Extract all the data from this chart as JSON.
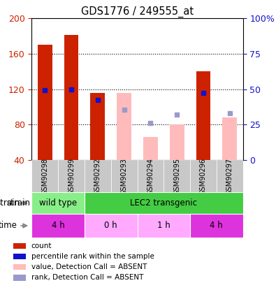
{
  "title": "GDS1776 / 249555_at",
  "samples": [
    "GSM90298",
    "GSM90299",
    "GSM90292",
    "GSM90293",
    "GSM90294",
    "GSM90295",
    "GSM90296",
    "GSM90297"
  ],
  "count_values": [
    170,
    181,
    116,
    null,
    null,
    null,
    140,
    null
  ],
  "rank_values": [
    119,
    120,
    108,
    null,
    null,
    null,
    116,
    null
  ],
  "absent_count_values": [
    null,
    null,
    null,
    116,
    66,
    80,
    null,
    88
  ],
  "absent_rank_values": [
    null,
    null,
    null,
    97,
    82,
    91,
    null,
    93
  ],
  "ylim_left": [
    40,
    200
  ],
  "ylim_right": [
    0,
    100
  ],
  "yticks_left": [
    40,
    80,
    120,
    160,
    200
  ],
  "yticks_right": [
    0,
    25,
    50,
    75,
    100
  ],
  "ytick_labels_right": [
    "0",
    "25",
    "50",
    "75",
    "100%"
  ],
  "bar_color_red": "#cc2200",
  "bar_color_pink": "#ffbbbb",
  "rank_color_blue": "#1111cc",
  "rank_color_lightblue": "#9999cc",
  "tick_label_color_left": "#cc2200",
  "tick_label_color_right": "#1111cc",
  "legend_items": [
    {
      "label": "count",
      "color": "#cc2200"
    },
    {
      "label": "percentile rank within the sample",
      "color": "#1111cc"
    },
    {
      "label": "value, Detection Call = ABSENT",
      "color": "#ffbbbb"
    },
    {
      "label": "rank, Detection Call = ABSENT",
      "color": "#9999cc"
    }
  ],
  "strain_wt_color": "#88ee88",
  "strain_lec2_color": "#44cc44",
  "time_dark_color": "#dd33dd",
  "time_light_color": "#ffaaff",
  "xtick_bg": "#cccccc",
  "background_color": "#ffffff"
}
